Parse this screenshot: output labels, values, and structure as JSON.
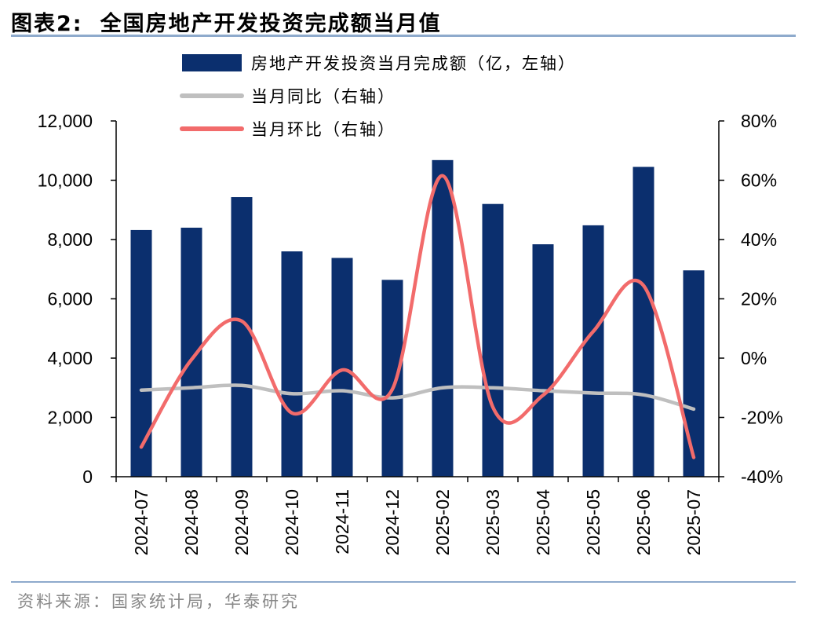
{
  "title": {
    "label": "图表2:",
    "text": "全国房地产开发投资完成额当月值"
  },
  "source": "资料来源：国家统计局，华泰研究",
  "chart_data": {
    "type": "bar+line",
    "categories": [
      "2024-07",
      "2024-08",
      "2024-09",
      "2024-10",
      "2024-11",
      "2024-12",
      "2025-02",
      "2025-03",
      "2025-04",
      "2025-05",
      "2025-06",
      "2025-07"
    ],
    "left_axis": {
      "ylim": [
        0,
        12000
      ],
      "ticks": [
        0,
        2000,
        4000,
        6000,
        8000,
        10000,
        12000
      ],
      "tick_labels": [
        "0",
        "2,000",
        "4,000",
        "6,000",
        "8,000",
        "10,000",
        "12,000"
      ]
    },
    "right_axis": {
      "ylim": [
        -40,
        80
      ],
      "ticks": [
        -40,
        -20,
        0,
        20,
        40,
        60,
        80
      ],
      "tick_labels": [
        "-40%",
        "-20%",
        "0%",
        "20%",
        "40%",
        "60%",
        "80%"
      ]
    },
    "series": [
      {
        "name": "房地产开发投资当月完成额（亿，左轴）",
        "kind": "bar",
        "axis": "left",
        "color": "#0b2f6e",
        "values": [
          8320,
          8400,
          9430,
          7600,
          7380,
          6640,
          10680,
          9200,
          7840,
          8480,
          10450,
          6960
        ]
      },
      {
        "name": "当月同比（右轴）",
        "kind": "line",
        "axis": "right",
        "color": "#bfbfbf",
        "values": [
          -10.8,
          -10.0,
          -9.2,
          -12.0,
          -11.0,
          -13.4,
          -10.0,
          -10.0,
          -11.0,
          -11.8,
          -12.4,
          -17.2
        ]
      },
      {
        "name": "当月环比（右轴）",
        "kind": "line",
        "axis": "right",
        "color": "#f26b6b",
        "values": [
          -30.0,
          -0.5,
          12.5,
          -18.5,
          -4.0,
          -10.5,
          61.5,
          -16.5,
          -12.5,
          9.0,
          24.5,
          -33.5
        ]
      }
    ],
    "legend_position": "top-center",
    "grid": false
  }
}
